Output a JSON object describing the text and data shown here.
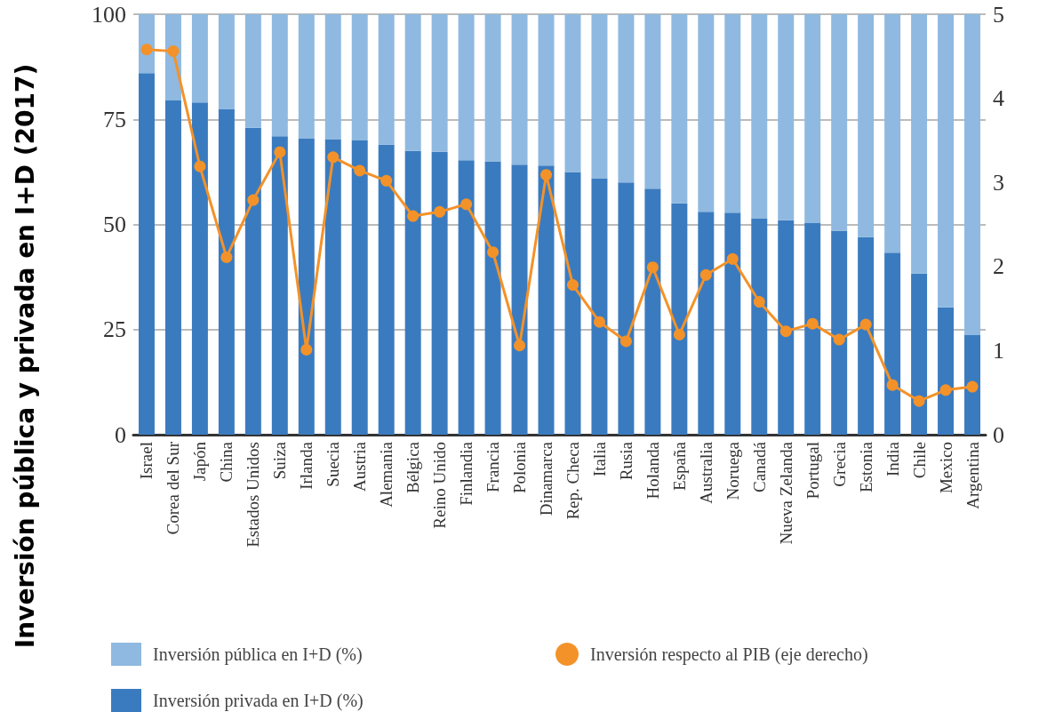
{
  "chart_data": {
    "type": "bar",
    "stacked": true,
    "ylabel": "Inversión pública y privada en I+D (2017)",
    "categories": [
      "Israel",
      "Corea del Sur",
      "Japón",
      "China",
      "Estados Unidos",
      "Suiza",
      "Irlanda",
      "Suecia",
      "Austria",
      "Alemania",
      "Bélgica",
      "Reino Unido",
      "Finlandia",
      "Francia",
      "Polonia",
      "Dinamarca",
      "Rep. Checa",
      "Italia",
      "Rusia",
      "Holanda",
      "España",
      "Australia",
      "Noruega",
      "Canadá",
      "Nueva Zelanda",
      "Portugal",
      "Grecia",
      "Estonia",
      "India",
      "Chile",
      "Mexico",
      "Argentina"
    ],
    "series": [
      {
        "name": "Inversión privada en I+D (%)",
        "color": "#3a7bc0",
        "values": [
          86,
          79.5,
          79,
          77.5,
          73,
          71,
          70.5,
          70.3,
          70,
          69,
          67.5,
          67.3,
          65.3,
          65,
          64.2,
          64,
          62.5,
          61,
          60,
          58.5,
          55,
          53,
          52.8,
          51.5,
          51,
          50.3,
          48.5,
          47,
          43.3,
          38.3,
          30.3,
          23.7
        ]
      },
      {
        "name": "Inversión pública en I+D (%)",
        "color": "#8fb9e0",
        "values": [
          14,
          20.5,
          21,
          22.5,
          27,
          29,
          29.5,
          29.7,
          30,
          31,
          32.5,
          32.7,
          34.7,
          35,
          35.8,
          36,
          37.5,
          39,
          40,
          41.5,
          45,
          47,
          47.2,
          48.5,
          49,
          49.7,
          51.5,
          53,
          56.7,
          61.7,
          69.7,
          76.3
        ]
      },
      {
        "name": "Inversión respecto al PIB (eje derecho)",
        "type": "line",
        "axis": "y2",
        "color": "#f39229",
        "values": [
          4.58,
          4.56,
          3.19,
          2.11,
          2.79,
          3.36,
          1.01,
          3.3,
          3.14,
          3.02,
          2.6,
          2.65,
          2.74,
          2.17,
          1.06,
          3.09,
          1.78,
          1.34,
          1.11,
          1.99,
          1.19,
          1.9,
          2.09,
          1.58,
          1.23,
          1.32,
          1.13,
          1.31,
          0.59,
          0.4,
          0.53,
          0.57
        ]
      }
    ],
    "ylim": [
      0,
      100
    ],
    "yticks": [
      0,
      25,
      50,
      75,
      100
    ],
    "y2lim": [
      0,
      5
    ],
    "y2ticks": [
      0,
      1,
      2,
      3,
      4,
      5
    ],
    "grid": "y",
    "legend": "bottom",
    "marker": "circle",
    "line_style": "solid"
  }
}
